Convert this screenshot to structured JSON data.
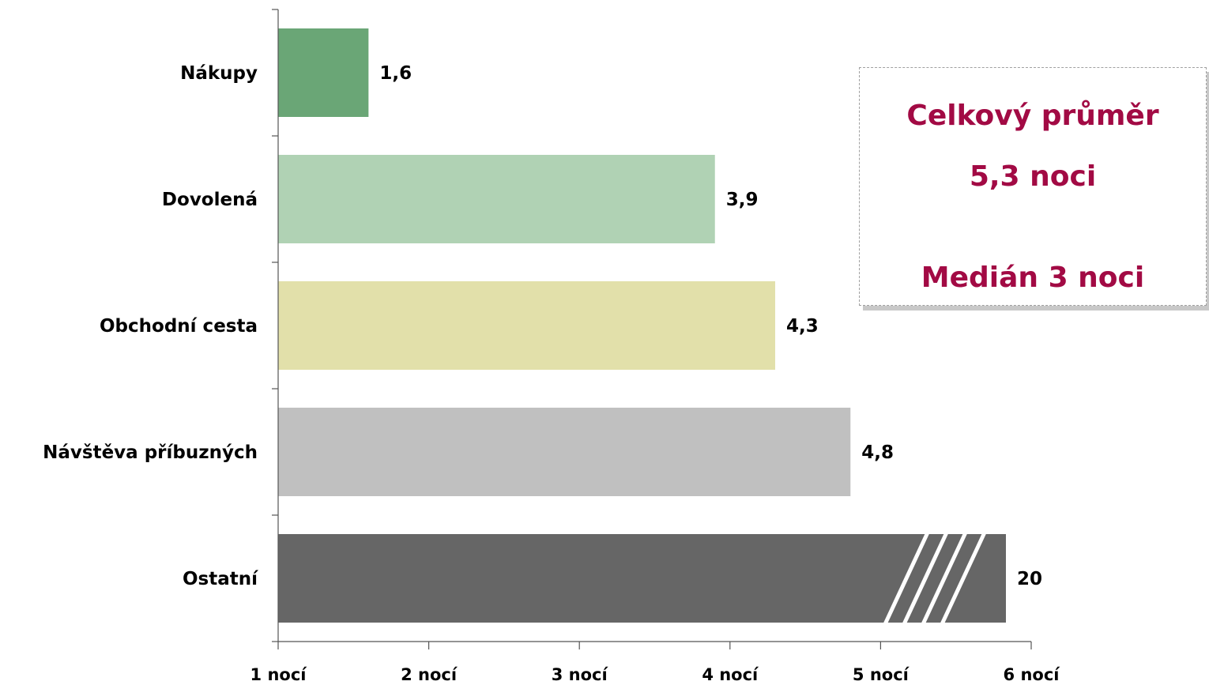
{
  "chart_data": {
    "type": "bar",
    "orientation": "horizontal",
    "categories": [
      "Nákupy",
      "Dovolená",
      "Obchodní cesta",
      "Návštěva příbuzných",
      "Ostatní"
    ],
    "values": [
      1.6,
      3.9,
      4.3,
      4.8,
      20
    ],
    "value_labels": [
      "1,6",
      "3,9",
      "4,3",
      "4,8",
      "20"
    ],
    "colors": [
      "#6aa676",
      "#b0d2b4",
      "#e2e0aa",
      "#c0c0c0",
      "#666666"
    ],
    "axis_break_on": "Ostatní",
    "x_ticks": [
      "1 nocí",
      "2 nocí",
      "3 nocí",
      "4 nocí",
      "5 nocí",
      "6 nocí"
    ],
    "xlim": [
      1,
      6
    ],
    "grid": false
  },
  "summary": {
    "mean_title": "Celkový průměr",
    "mean_value": "5,3 noci",
    "median": "Medián 3 noci",
    "text_color": "#a20a44"
  }
}
